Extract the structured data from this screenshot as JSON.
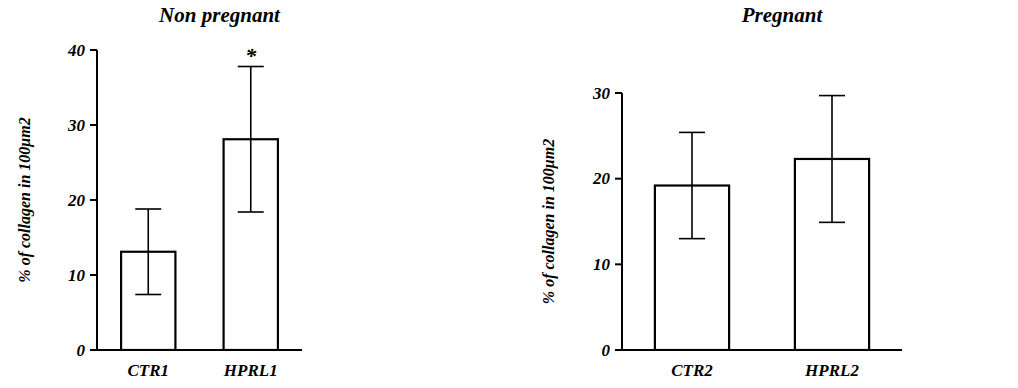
{
  "chart_data": [
    {
      "type": "bar",
      "title": "Non pregnant",
      "y_label": "% of collagen in 100μm2",
      "categories": [
        "CTR1",
        "HPRL1"
      ],
      "values": [
        13.1,
        28.1
      ],
      "errors": [
        5.7,
        9.7
      ],
      "color": "#ffffff",
      "ylim": [
        0,
        40
      ],
      "yticks": [
        0,
        10,
        20,
        30,
        40
      ],
      "grid": false,
      "annotations": [
        {
          "text": "*",
          "x": "HPRL1"
        }
      ]
    },
    {
      "type": "bar",
      "title": "Pregnant",
      "y_label": "% of collagen in 100μm2",
      "categories": [
        "CTR2",
        "HPRL2"
      ],
      "values": [
        19.2,
        22.3
      ],
      "errors": [
        6.2,
        7.4
      ],
      "color": "#ffffff",
      "ylim": [
        0,
        30
      ],
      "yticks": [
        0,
        10,
        20,
        30
      ],
      "grid": false
    }
  ]
}
